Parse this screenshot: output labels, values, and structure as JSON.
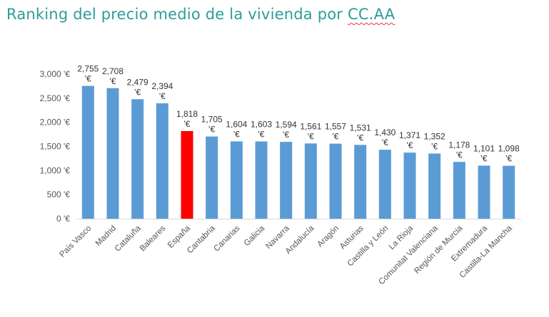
{
  "title": {
    "main": "Ranking del precio medio de la vivienda por",
    "abbr": "CC.AA"
  },
  "chart_data": {
    "type": "bar",
    "categories": [
      "País Vasco",
      "Madrid",
      "Cataluña",
      "Baleares",
      "España",
      "Cantabria",
      "Canarias",
      "Galicia",
      "Navarra",
      "Andalucía",
      "Aragón",
      "Asturias",
      "Castilla y León",
      "La Rioja",
      "Comunitat Valenciana",
      "Región de Murcia",
      "Extremadura",
      "Castilla-La Mancha"
    ],
    "values": [
      2755,
      2708,
      2479,
      2394,
      1818,
      1705,
      1604,
      1603,
      1594,
      1561,
      1557,
      1531,
      1430,
      1371,
      1352,
      1178,
      1101,
      1098
    ],
    "data_labels": [
      "2,755",
      "2,708",
      "2,479",
      "2,394",
      "1,818",
      "1,705",
      "1,604",
      "1,603",
      "1,594",
      "1,561",
      "1,557",
      "1,531",
      "1,430",
      "1,371",
      "1,352",
      "1,178",
      "1,101",
      "1,098"
    ],
    "data_label_unit": "'€",
    "y_ticks": [
      "0 '€",
      "500 '€",
      "1,000 '€",
      "1,500 '€",
      "2,000 '€",
      "2,500 '€",
      "3,000 '€"
    ],
    "y_tick_values": [
      0,
      500,
      1000,
      1500,
      2000,
      2500,
      3000
    ],
    "ylim": [
      0,
      3000
    ],
    "grid": false,
    "legend": "none",
    "colors": {
      "default": "#5b9bd5",
      "highlight": "#ff0000",
      "axis": "#d9d9d9"
    },
    "highlight_category": "España"
  }
}
